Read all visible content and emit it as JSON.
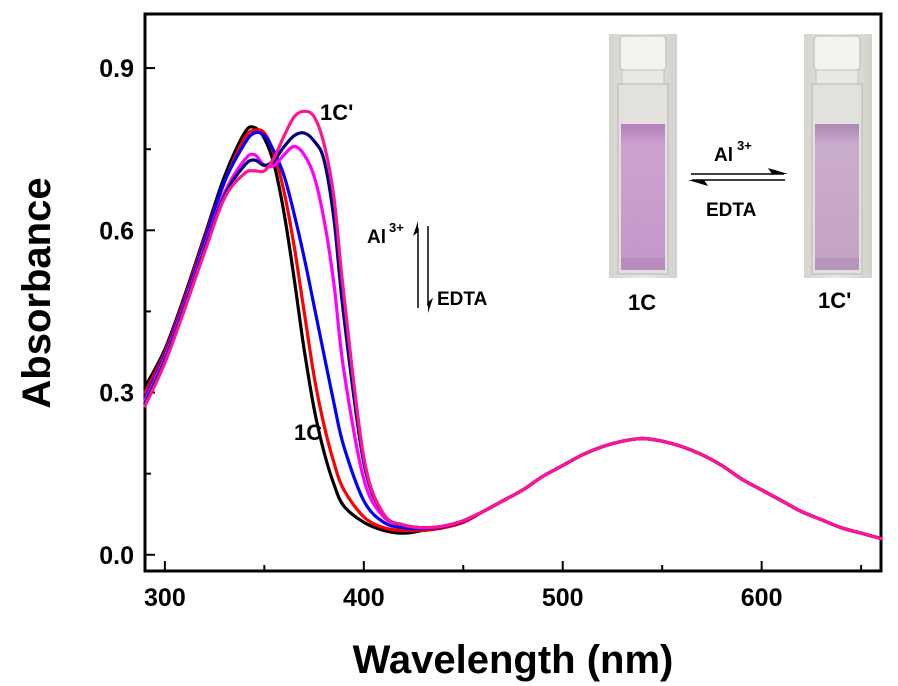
{
  "chart_data": {
    "type": "line",
    "title": "",
    "xlabel": "Wavelength (nm)",
    "ylabel": "Absorbance",
    "xlim": [
      290,
      660
    ],
    "ylim": [
      -0.03,
      1.0
    ],
    "x_ticks": [
      300,
      400,
      500,
      600
    ],
    "y_ticks": [
      0.0,
      0.3,
      0.6,
      0.9
    ],
    "x_tick_labels": [
      "300",
      "400",
      "500",
      "600"
    ],
    "y_tick_labels": [
      "0.0",
      "0.3",
      "0.6",
      "0.9"
    ],
    "grid": false,
    "legend": "none",
    "series": [
      {
        "color": "#000000",
        "points": [
          [
            290,
            0.31
          ],
          [
            300,
            0.38
          ],
          [
            310,
            0.48
          ],
          [
            320,
            0.59
          ],
          [
            330,
            0.7
          ],
          [
            340,
            0.78
          ],
          [
            345,
            0.79
          ],
          [
            350,
            0.77
          ],
          [
            355,
            0.72
          ],
          [
            360,
            0.63
          ],
          [
            365,
            0.51
          ],
          [
            370,
            0.38
          ],
          [
            375,
            0.27
          ],
          [
            380,
            0.19
          ],
          [
            385,
            0.13
          ],
          [
            390,
            0.09
          ],
          [
            400,
            0.06
          ],
          [
            410,
            0.045
          ],
          [
            420,
            0.04
          ],
          [
            430,
            0.045
          ],
          [
            440,
            0.05
          ],
          [
            450,
            0.06
          ],
          [
            460,
            0.08
          ],
          [
            470,
            0.1
          ],
          [
            480,
            0.12
          ],
          [
            490,
            0.145
          ],
          [
            500,
            0.165
          ],
          [
            510,
            0.185
          ],
          [
            520,
            0.2
          ],
          [
            530,
            0.21
          ],
          [
            540,
            0.215
          ],
          [
            550,
            0.21
          ],
          [
            560,
            0.2
          ],
          [
            570,
            0.185
          ],
          [
            580,
            0.165
          ],
          [
            590,
            0.14
          ],
          [
            600,
            0.12
          ],
          [
            610,
            0.1
          ],
          [
            620,
            0.08
          ],
          [
            630,
            0.065
          ],
          [
            640,
            0.05
          ],
          [
            650,
            0.04
          ],
          [
            660,
            0.03
          ]
        ]
      },
      {
        "color": "#ff0000",
        "points": [
          [
            290,
            0.3
          ],
          [
            300,
            0.375
          ],
          [
            310,
            0.475
          ],
          [
            320,
            0.585
          ],
          [
            330,
            0.69
          ],
          [
            340,
            0.77
          ],
          [
            345,
            0.785
          ],
          [
            350,
            0.78
          ],
          [
            355,
            0.74
          ],
          [
            360,
            0.67
          ],
          [
            365,
            0.57
          ],
          [
            370,
            0.45
          ],
          [
            375,
            0.33
          ],
          [
            380,
            0.24
          ],
          [
            385,
            0.17
          ],
          [
            390,
            0.12
          ],
          [
            400,
            0.07
          ],
          [
            410,
            0.05
          ],
          [
            420,
            0.045
          ],
          [
            430,
            0.045
          ],
          [
            440,
            0.05
          ],
          [
            450,
            0.06
          ],
          [
            460,
            0.08
          ],
          [
            470,
            0.1
          ],
          [
            480,
            0.12
          ],
          [
            490,
            0.145
          ],
          [
            500,
            0.165
          ],
          [
            510,
            0.185
          ],
          [
            520,
            0.2
          ],
          [
            530,
            0.21
          ],
          [
            540,
            0.215
          ],
          [
            550,
            0.21
          ],
          [
            560,
            0.2
          ],
          [
            570,
            0.185
          ],
          [
            580,
            0.165
          ],
          [
            590,
            0.14
          ],
          [
            600,
            0.12
          ],
          [
            610,
            0.1
          ],
          [
            620,
            0.08
          ],
          [
            630,
            0.065
          ],
          [
            640,
            0.05
          ],
          [
            650,
            0.04
          ],
          [
            660,
            0.03
          ]
        ]
      },
      {
        "color": "#0000ff",
        "points": [
          [
            290,
            0.29
          ],
          [
            300,
            0.37
          ],
          [
            310,
            0.47
          ],
          [
            320,
            0.58
          ],
          [
            330,
            0.69
          ],
          [
            340,
            0.76
          ],
          [
            345,
            0.78
          ],
          [
            350,
            0.775
          ],
          [
            355,
            0.745
          ],
          [
            360,
            0.7
          ],
          [
            365,
            0.63
          ],
          [
            370,
            0.55
          ],
          [
            375,
            0.46
          ],
          [
            380,
            0.37
          ],
          [
            385,
            0.28
          ],
          [
            390,
            0.2
          ],
          [
            400,
            0.1
          ],
          [
            410,
            0.06
          ],
          [
            420,
            0.05
          ],
          [
            430,
            0.048
          ],
          [
            440,
            0.052
          ],
          [
            450,
            0.062
          ],
          [
            460,
            0.08
          ],
          [
            470,
            0.1
          ],
          [
            480,
            0.12
          ],
          [
            490,
            0.145
          ],
          [
            500,
            0.165
          ],
          [
            510,
            0.185
          ],
          [
            520,
            0.2
          ],
          [
            530,
            0.21
          ],
          [
            540,
            0.215
          ],
          [
            550,
            0.21
          ],
          [
            560,
            0.2
          ],
          [
            570,
            0.185
          ],
          [
            580,
            0.165
          ],
          [
            590,
            0.14
          ],
          [
            600,
            0.12
          ],
          [
            610,
            0.1
          ],
          [
            620,
            0.08
          ],
          [
            630,
            0.065
          ],
          [
            640,
            0.05
          ],
          [
            650,
            0.04
          ],
          [
            660,
            0.03
          ]
        ]
      },
      {
        "color": "#ff00ff",
        "points": [
          [
            290,
            0.285
          ],
          [
            300,
            0.365
          ],
          [
            310,
            0.465
          ],
          [
            320,
            0.57
          ],
          [
            330,
            0.67
          ],
          [
            340,
            0.73
          ],
          [
            345,
            0.74
          ],
          [
            350,
            0.72
          ],
          [
            355,
            0.72
          ],
          [
            360,
            0.74
          ],
          [
            365,
            0.755
          ],
          [
            370,
            0.74
          ],
          [
            375,
            0.7
          ],
          [
            380,
            0.62
          ],
          [
            385,
            0.5
          ],
          [
            390,
            0.34
          ],
          [
            400,
            0.14
          ],
          [
            410,
            0.07
          ],
          [
            420,
            0.055
          ],
          [
            430,
            0.05
          ],
          [
            440,
            0.053
          ],
          [
            450,
            0.063
          ],
          [
            460,
            0.08
          ],
          [
            470,
            0.1
          ],
          [
            480,
            0.12
          ],
          [
            490,
            0.145
          ],
          [
            500,
            0.165
          ],
          [
            510,
            0.185
          ],
          [
            520,
            0.2
          ],
          [
            530,
            0.21
          ],
          [
            540,
            0.215
          ],
          [
            550,
            0.21
          ],
          [
            560,
            0.2
          ],
          [
            570,
            0.185
          ],
          [
            580,
            0.165
          ],
          [
            590,
            0.14
          ],
          [
            600,
            0.12
          ],
          [
            610,
            0.1
          ],
          [
            620,
            0.08
          ],
          [
            630,
            0.065
          ],
          [
            640,
            0.05
          ],
          [
            650,
            0.04
          ],
          [
            660,
            0.03
          ]
        ]
      },
      {
        "color": "#000080",
        "points": [
          [
            290,
            0.28
          ],
          [
            300,
            0.36
          ],
          [
            310,
            0.46
          ],
          [
            320,
            0.565
          ],
          [
            330,
            0.665
          ],
          [
            340,
            0.72
          ],
          [
            345,
            0.73
          ],
          [
            350,
            0.72
          ],
          [
            355,
            0.73
          ],
          [
            360,
            0.755
          ],
          [
            365,
            0.775
          ],
          [
            370,
            0.78
          ],
          [
            375,
            0.765
          ],
          [
            380,
            0.73
          ],
          [
            385,
            0.62
          ],
          [
            390,
            0.44
          ],
          [
            400,
            0.17
          ],
          [
            410,
            0.075
          ],
          [
            420,
            0.055
          ],
          [
            430,
            0.05
          ],
          [
            440,
            0.053
          ],
          [
            450,
            0.063
          ],
          [
            460,
            0.08
          ],
          [
            470,
            0.1
          ],
          [
            480,
            0.12
          ],
          [
            490,
            0.145
          ],
          [
            500,
            0.165
          ],
          [
            510,
            0.185
          ],
          [
            520,
            0.2
          ],
          [
            530,
            0.21
          ],
          [
            540,
            0.215
          ],
          [
            550,
            0.21
          ],
          [
            560,
            0.2
          ],
          [
            570,
            0.185
          ],
          [
            580,
            0.165
          ],
          [
            590,
            0.14
          ],
          [
            600,
            0.12
          ],
          [
            610,
            0.1
          ],
          [
            620,
            0.08
          ],
          [
            630,
            0.065
          ],
          [
            640,
            0.05
          ],
          [
            650,
            0.04
          ],
          [
            660,
            0.03
          ]
        ]
      },
      {
        "color": "#ff1493",
        "points": [
          [
            290,
            0.275
          ],
          [
            300,
            0.355
          ],
          [
            310,
            0.455
          ],
          [
            320,
            0.56
          ],
          [
            330,
            0.66
          ],
          [
            340,
            0.705
          ],
          [
            345,
            0.71
          ],
          [
            350,
            0.71
          ],
          [
            355,
            0.735
          ],
          [
            360,
            0.775
          ],
          [
            365,
            0.81
          ],
          [
            370,
            0.82
          ],
          [
            375,
            0.81
          ],
          [
            380,
            0.76
          ],
          [
            385,
            0.66
          ],
          [
            390,
            0.48
          ],
          [
            400,
            0.18
          ],
          [
            410,
            0.075
          ],
          [
            420,
            0.055
          ],
          [
            430,
            0.05
          ],
          [
            440,
            0.053
          ],
          [
            450,
            0.063
          ],
          [
            460,
            0.08
          ],
          [
            470,
            0.1
          ],
          [
            480,
            0.12
          ],
          [
            490,
            0.145
          ],
          [
            500,
            0.165
          ],
          [
            510,
            0.185
          ],
          [
            520,
            0.2
          ],
          [
            530,
            0.21
          ],
          [
            540,
            0.215
          ],
          [
            550,
            0.21
          ],
          [
            560,
            0.2
          ],
          [
            570,
            0.185
          ],
          [
            580,
            0.165
          ],
          [
            590,
            0.14
          ],
          [
            600,
            0.12
          ],
          [
            610,
            0.1
          ],
          [
            620,
            0.08
          ],
          [
            630,
            0.065
          ],
          [
            640,
            0.05
          ],
          [
            650,
            0.04
          ],
          [
            660,
            0.03
          ]
        ]
      }
    ],
    "annotations": {
      "curve_label_start": "1C",
      "curve_label_end": "1C'",
      "arrow_up_label": "Al",
      "arrow_up_sup": "3+",
      "arrow_down_label": "EDTA",
      "inset_left_label": "1C",
      "inset_right_label": "1C'",
      "inset_forward_label": "Al",
      "inset_forward_sup": "3+",
      "inset_reverse_label": "EDTA"
    },
    "inset_colors": {
      "cuvette_left_solution": "#c89ccb",
      "cuvette_right_solution": "#c8a5c8",
      "cuvette_cap": "#e8e6e2"
    }
  }
}
